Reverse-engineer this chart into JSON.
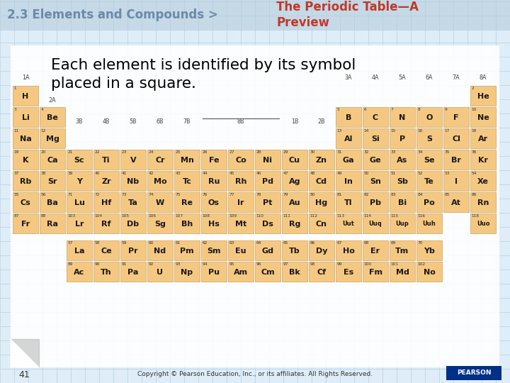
{
  "title_left": "2.3 Elements and Compounds >",
  "title_right": "The Periodic Table—A\nPreview",
  "subtitle": "Each element is identified by its symbol\nplaced in a square.",
  "footer": "Copyright © Pearson Education, Inc., or its affiliates. All Rights Reserved.",
  "page_num": "41",
  "bg_tile_light": "#deedf7",
  "bg_tile_dark": "#c8dcea",
  "bg_tile_line": "#b8cfe0",
  "header_bg": "#c5d9e6",
  "header_tile_light": "#ccdde9",
  "cell_color": "#f5c882",
  "cell_border": "#c8a060",
  "title_left_color": "#6a8aaa",
  "title_right_color": "#c0392b",
  "subtitle_color": "#000000",
  "pearson_bg": "#003087",
  "elements": [
    {
      "symbol": "H",
      "num": 1,
      "col": 0,
      "row": 0
    },
    {
      "symbol": "He",
      "num": 2,
      "col": 17,
      "row": 0
    },
    {
      "symbol": "Li",
      "num": 3,
      "col": 0,
      "row": 1
    },
    {
      "symbol": "Be",
      "num": 4,
      "col": 1,
      "row": 1
    },
    {
      "symbol": "B",
      "num": 5,
      "col": 12,
      "row": 1
    },
    {
      "symbol": "C",
      "num": 6,
      "col": 13,
      "row": 1
    },
    {
      "symbol": "N",
      "num": 7,
      "col": 14,
      "row": 1
    },
    {
      "symbol": "O",
      "num": 8,
      "col": 15,
      "row": 1
    },
    {
      "symbol": "F",
      "num": 9,
      "col": 16,
      "row": 1
    },
    {
      "symbol": "Ne",
      "num": 10,
      "col": 17,
      "row": 1
    },
    {
      "symbol": "Na",
      "num": 11,
      "col": 0,
      "row": 2
    },
    {
      "symbol": "Mg",
      "num": 12,
      "col": 1,
      "row": 2
    },
    {
      "symbol": "Al",
      "num": 13,
      "col": 12,
      "row": 2
    },
    {
      "symbol": "Si",
      "num": 14,
      "col": 13,
      "row": 2
    },
    {
      "symbol": "P",
      "num": 15,
      "col": 14,
      "row": 2
    },
    {
      "symbol": "S",
      "num": 16,
      "col": 15,
      "row": 2
    },
    {
      "symbol": "Cl",
      "num": 17,
      "col": 16,
      "row": 2
    },
    {
      "symbol": "Ar",
      "num": 18,
      "col": 17,
      "row": 2
    },
    {
      "symbol": "K",
      "num": 19,
      "col": 0,
      "row": 3
    },
    {
      "symbol": "Ca",
      "num": 20,
      "col": 1,
      "row": 3
    },
    {
      "symbol": "Sc",
      "num": 21,
      "col": 2,
      "row": 3
    },
    {
      "symbol": "Ti",
      "num": 22,
      "col": 3,
      "row": 3
    },
    {
      "symbol": "V",
      "num": 23,
      "col": 4,
      "row": 3
    },
    {
      "symbol": "Cr",
      "num": 24,
      "col": 5,
      "row": 3
    },
    {
      "symbol": "Mn",
      "num": 25,
      "col": 6,
      "row": 3
    },
    {
      "symbol": "Fe",
      "num": 26,
      "col": 7,
      "row": 3
    },
    {
      "symbol": "Co",
      "num": 27,
      "col": 8,
      "row": 3
    },
    {
      "symbol": "Ni",
      "num": 28,
      "col": 9,
      "row": 3
    },
    {
      "symbol": "Cu",
      "num": 29,
      "col": 10,
      "row": 3
    },
    {
      "symbol": "Zn",
      "num": 30,
      "col": 11,
      "row": 3
    },
    {
      "symbol": "Ga",
      "num": 31,
      "col": 12,
      "row": 3
    },
    {
      "symbol": "Ge",
      "num": 32,
      "col": 13,
      "row": 3
    },
    {
      "symbol": "As",
      "num": 33,
      "col": 14,
      "row": 3
    },
    {
      "symbol": "Se",
      "num": 34,
      "col": 15,
      "row": 3
    },
    {
      "symbol": "Br",
      "num": 35,
      "col": 16,
      "row": 3
    },
    {
      "symbol": "Kr",
      "num": 36,
      "col": 17,
      "row": 3
    },
    {
      "symbol": "Rb",
      "num": 37,
      "col": 0,
      "row": 4
    },
    {
      "symbol": "Sr",
      "num": 38,
      "col": 1,
      "row": 4
    },
    {
      "symbol": "Y",
      "num": 39,
      "col": 2,
      "row": 4
    },
    {
      "symbol": "Zr",
      "num": 40,
      "col": 3,
      "row": 4
    },
    {
      "symbol": "Nb",
      "num": 41,
      "col": 4,
      "row": 4
    },
    {
      "symbol": "Mo",
      "num": 42,
      "col": 5,
      "row": 4
    },
    {
      "symbol": "Tc",
      "num": 43,
      "col": 6,
      "row": 4
    },
    {
      "symbol": "Ru",
      "num": 44,
      "col": 7,
      "row": 4
    },
    {
      "symbol": "Rh",
      "num": 45,
      "col": 8,
      "row": 4
    },
    {
      "symbol": "Pd",
      "num": 46,
      "col": 9,
      "row": 4
    },
    {
      "symbol": "Ag",
      "num": 47,
      "col": 10,
      "row": 4
    },
    {
      "symbol": "Cd",
      "num": 48,
      "col": 11,
      "row": 4
    },
    {
      "symbol": "In",
      "num": 49,
      "col": 12,
      "row": 4
    },
    {
      "symbol": "Sn",
      "num": 50,
      "col": 13,
      "row": 4
    },
    {
      "symbol": "Sb",
      "num": 51,
      "col": 14,
      "row": 4
    },
    {
      "symbol": "Te",
      "num": 52,
      "col": 15,
      "row": 4
    },
    {
      "symbol": "I",
      "num": 53,
      "col": 16,
      "row": 4
    },
    {
      "symbol": "Xe",
      "num": 54,
      "col": 17,
      "row": 4
    },
    {
      "symbol": "Cs",
      "num": 55,
      "col": 0,
      "row": 5
    },
    {
      "symbol": "Ba",
      "num": 56,
      "col": 1,
      "row": 5
    },
    {
      "symbol": "Lu",
      "num": 71,
      "col": 2,
      "row": 5
    },
    {
      "symbol": "Hf",
      "num": 72,
      "col": 3,
      "row": 5
    },
    {
      "symbol": "Ta",
      "num": 73,
      "col": 4,
      "row": 5
    },
    {
      "symbol": "W",
      "num": 74,
      "col": 5,
      "row": 5
    },
    {
      "symbol": "Re",
      "num": 75,
      "col": 6,
      "row": 5
    },
    {
      "symbol": "Os",
      "num": 76,
      "col": 7,
      "row": 5
    },
    {
      "symbol": "Ir",
      "num": 77,
      "col": 8,
      "row": 5
    },
    {
      "symbol": "Pt",
      "num": 78,
      "col": 9,
      "row": 5
    },
    {
      "symbol": "Au",
      "num": 79,
      "col": 10,
      "row": 5
    },
    {
      "symbol": "Hg",
      "num": 80,
      "col": 11,
      "row": 5
    },
    {
      "symbol": "Tl",
      "num": 81,
      "col": 12,
      "row": 5
    },
    {
      "symbol": "Pb",
      "num": 82,
      "col": 13,
      "row": 5
    },
    {
      "symbol": "Bi",
      "num": 83,
      "col": 14,
      "row": 5
    },
    {
      "symbol": "Po",
      "num": 84,
      "col": 15,
      "row": 5
    },
    {
      "symbol": "At",
      "num": 85,
      "col": 16,
      "row": 5
    },
    {
      "symbol": "Rn",
      "num": 86,
      "col": 17,
      "row": 5
    },
    {
      "symbol": "Fr",
      "num": 87,
      "col": 0,
      "row": 6
    },
    {
      "symbol": "Ra",
      "num": 88,
      "col": 1,
      "row": 6
    },
    {
      "symbol": "Lr",
      "num": 103,
      "col": 2,
      "row": 6
    },
    {
      "symbol": "Rf",
      "num": 104,
      "col": 3,
      "row": 6
    },
    {
      "symbol": "Db",
      "num": 105,
      "col": 4,
      "row": 6
    },
    {
      "symbol": "Sg",
      "num": 106,
      "col": 5,
      "row": 6
    },
    {
      "symbol": "Bh",
      "num": 107,
      "col": 6,
      "row": 6
    },
    {
      "symbol": "Hs",
      "num": 108,
      "col": 7,
      "row": 6
    },
    {
      "symbol": "Mt",
      "num": 109,
      "col": 8,
      "row": 6
    },
    {
      "symbol": "Ds",
      "num": 110,
      "col": 9,
      "row": 6
    },
    {
      "symbol": "Rg",
      "num": 111,
      "col": 10,
      "row": 6
    },
    {
      "symbol": "Cn",
      "num": 112,
      "col": 11,
      "row": 6
    },
    {
      "symbol": "Uut",
      "num": 113,
      "col": 12,
      "row": 6
    },
    {
      "symbol": "Uuq",
      "num": 114,
      "col": 13,
      "row": 6
    },
    {
      "symbol": "Uup",
      "num": 115,
      "col": 14,
      "row": 6
    },
    {
      "symbol": "Uuh",
      "num": 116,
      "col": 15,
      "row": 6
    },
    {
      "symbol": "Uuo",
      "num": 118,
      "col": 17,
      "row": 6
    },
    {
      "symbol": "La",
      "num": 57,
      "col": 2,
      "row": 8
    },
    {
      "symbol": "Ce",
      "num": 58,
      "col": 3,
      "row": 8
    },
    {
      "symbol": "Pr",
      "num": 59,
      "col": 4,
      "row": 8
    },
    {
      "symbol": "Nd",
      "num": 60,
      "col": 5,
      "row": 8
    },
    {
      "symbol": "Pm",
      "num": 61,
      "col": 6,
      "row": 8
    },
    {
      "symbol": "Sm",
      "num": 62,
      "col": 7,
      "row": 8
    },
    {
      "symbol": "Eu",
      "num": 63,
      "col": 8,
      "row": 8
    },
    {
      "symbol": "Gd",
      "num": 64,
      "col": 9,
      "row": 8
    },
    {
      "symbol": "Tb",
      "num": 65,
      "col": 10,
      "row": 8
    },
    {
      "symbol": "Dy",
      "num": 66,
      "col": 11,
      "row": 8
    },
    {
      "symbol": "Ho",
      "num": 67,
      "col": 12,
      "row": 8
    },
    {
      "symbol": "Er",
      "num": 68,
      "col": 13,
      "row": 8
    },
    {
      "symbol": "Tm",
      "num": 69,
      "col": 14,
      "row": 8
    },
    {
      "symbol": "Yb",
      "num": 70,
      "col": 15,
      "row": 8
    },
    {
      "symbol": "Ac",
      "num": 89,
      "col": 2,
      "row": 9
    },
    {
      "symbol": "Th",
      "num": 90,
      "col": 3,
      "row": 9
    },
    {
      "symbol": "Pa",
      "num": 91,
      "col": 4,
      "row": 9
    },
    {
      "symbol": "U",
      "num": 92,
      "col": 5,
      "row": 9
    },
    {
      "symbol": "Np",
      "num": 93,
      "col": 6,
      "row": 9
    },
    {
      "symbol": "Pu",
      "num": 94,
      "col": 7,
      "row": 9
    },
    {
      "symbol": "Am",
      "num": 95,
      "col": 8,
      "row": 9
    },
    {
      "symbol": "Cm",
      "num": 96,
      "col": 9,
      "row": 9
    },
    {
      "symbol": "Bk",
      "num": 97,
      "col": 10,
      "row": 9
    },
    {
      "symbol": "Cf",
      "num": 98,
      "col": 11,
      "row": 9
    },
    {
      "symbol": "Es",
      "num": 99,
      "col": 12,
      "row": 9
    },
    {
      "symbol": "Fm",
      "num": 100,
      "col": 13,
      "row": 9
    },
    {
      "symbol": "Md",
      "num": 101,
      "col": 14,
      "row": 9
    },
    {
      "symbol": "No",
      "num": 102,
      "col": 15,
      "row": 9
    }
  ]
}
